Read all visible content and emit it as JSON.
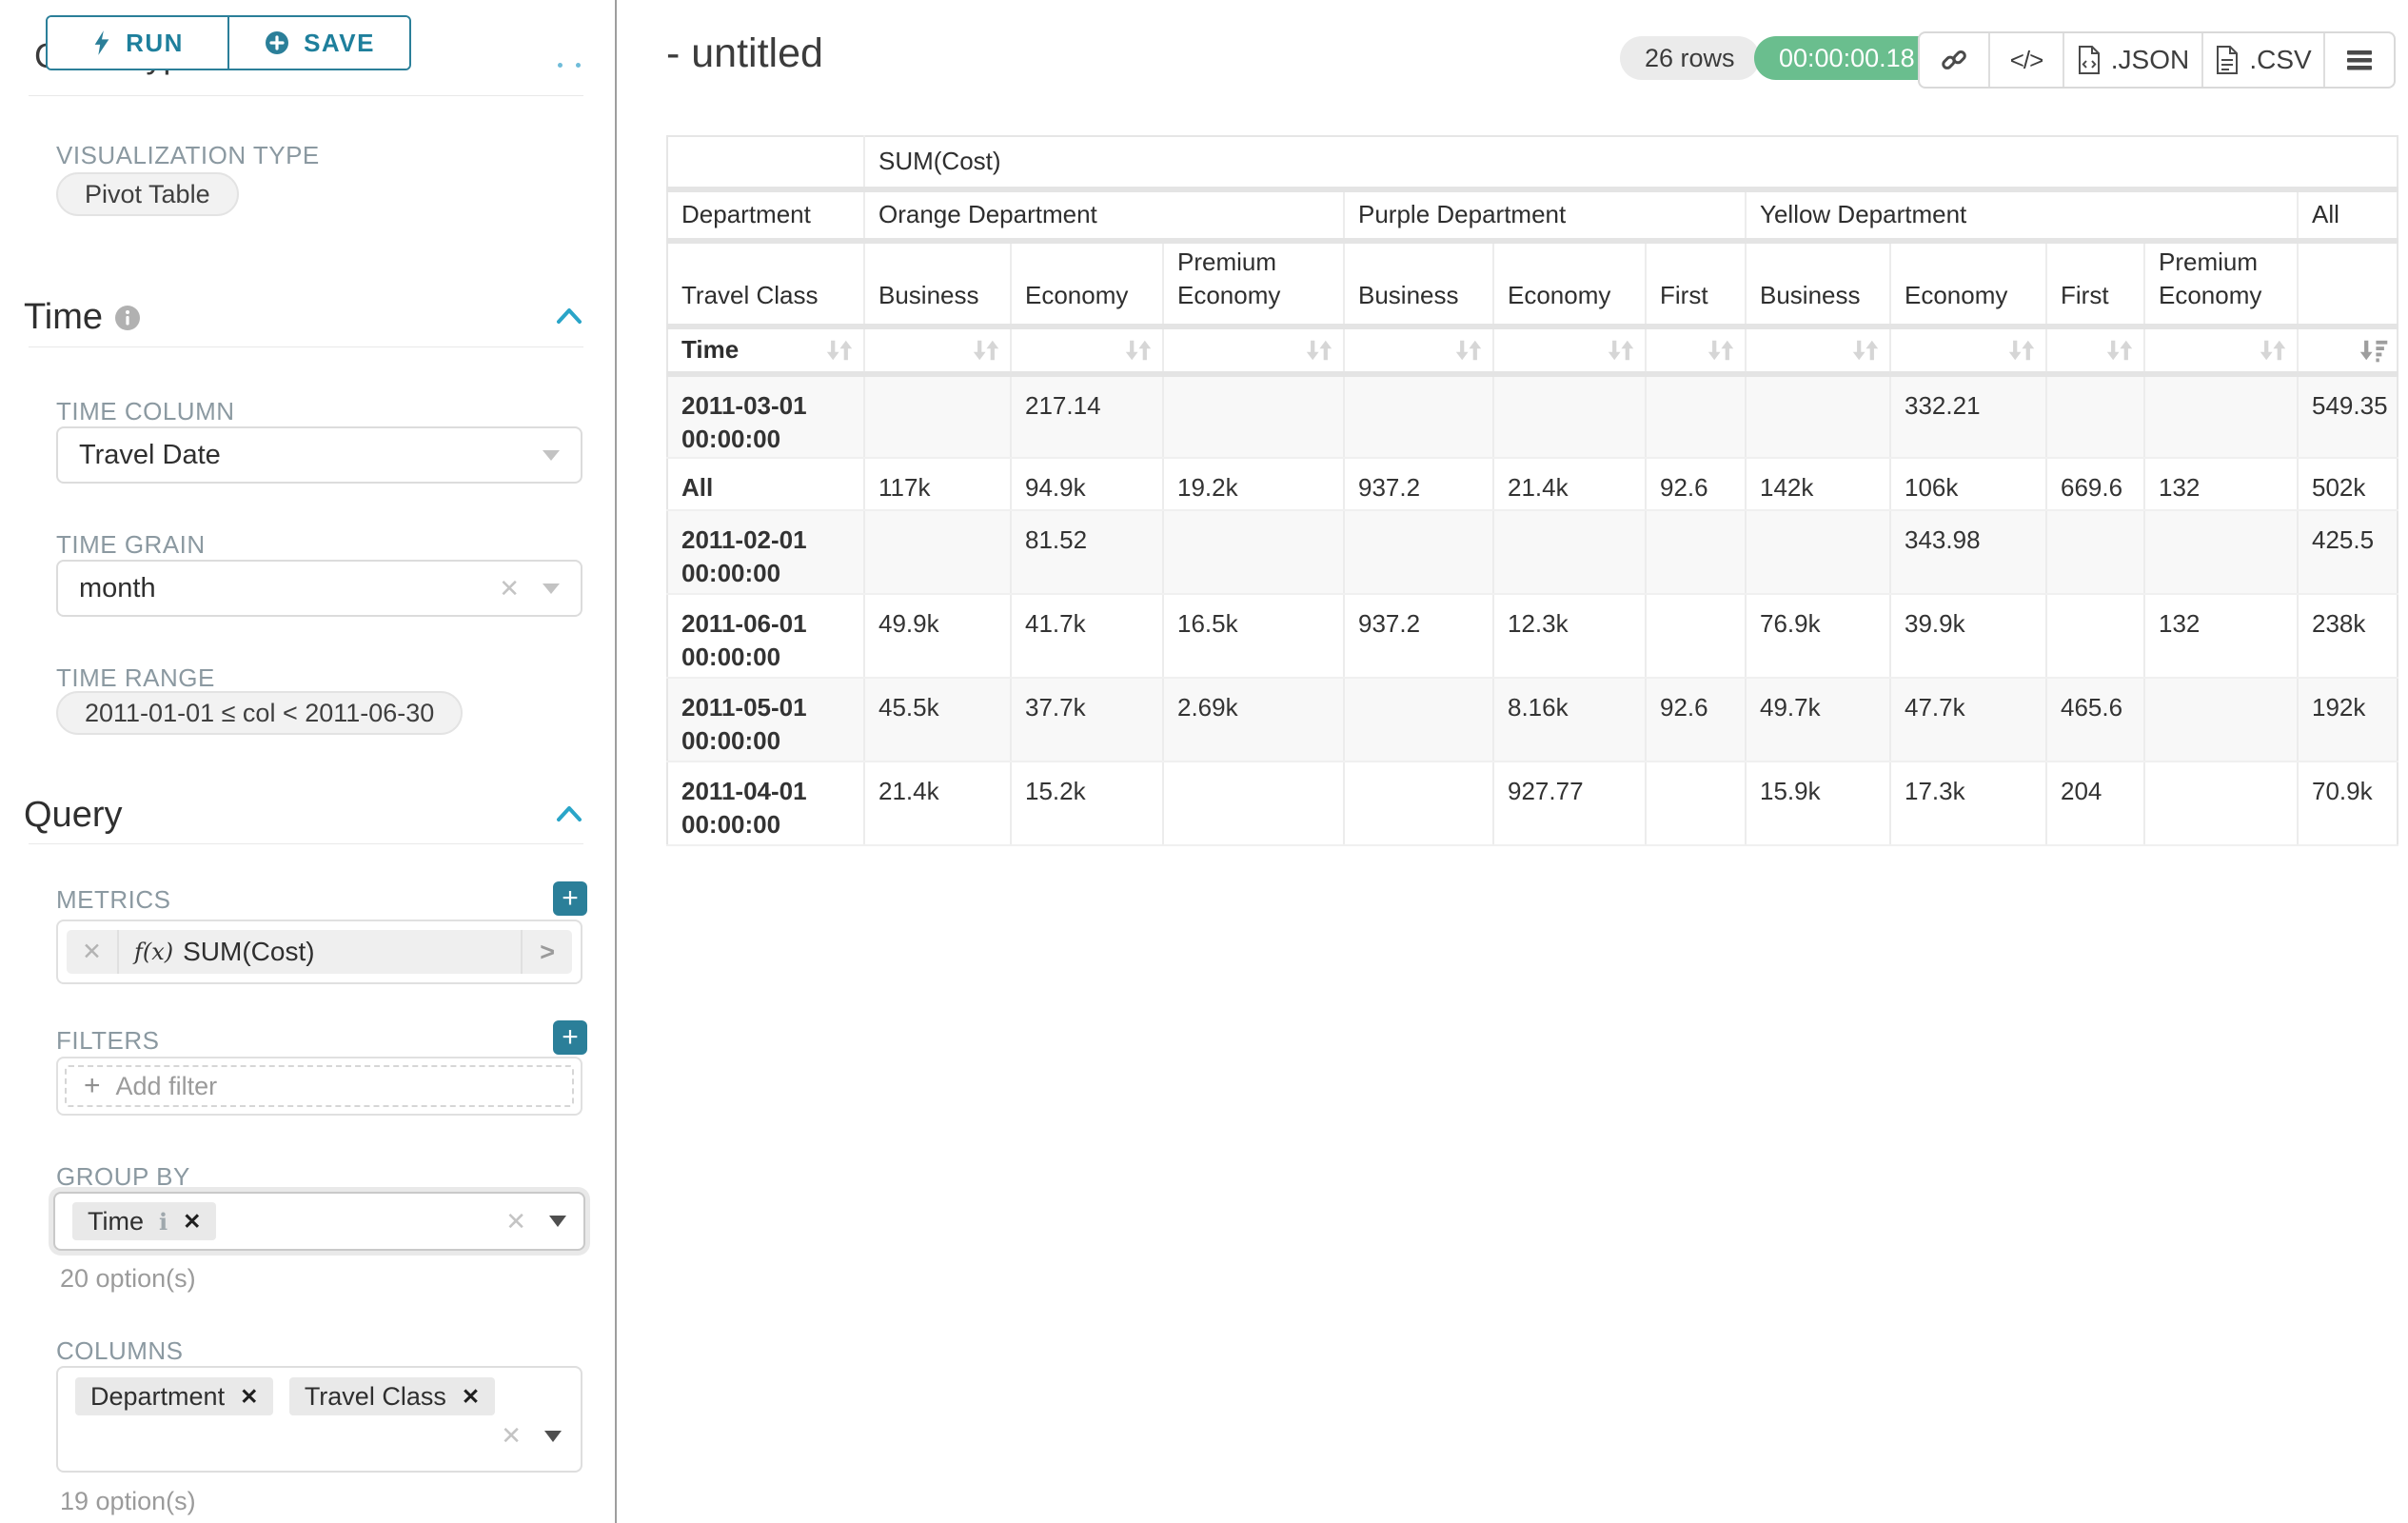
{
  "colors": {
    "accent_teal": "#2b7f99",
    "success_green": "#6abe8e",
    "link_blue": "#2aa5c8"
  },
  "panel": {
    "run_label": "RUN",
    "save_label": "SAVE",
    "chart_type_heading": "Chart Type",
    "viz_type_label": "VISUALIZATION TYPE",
    "viz_type_value": "Pivot Table",
    "time_section_title": "Time",
    "time_column_label": "TIME COLUMN",
    "time_column_value": "Travel Date",
    "time_grain_label": "TIME GRAIN",
    "time_grain_value": "month",
    "time_range_label": "TIME RANGE",
    "time_range_value": "2011-01-01 ≤ col < 2011-06-30",
    "query_section_title": "Query",
    "metrics_label": "METRICS",
    "metric_fx": "f(x)",
    "metric_value": "SUM(Cost)",
    "filters_label": "FILTERS",
    "add_filter_label": "Add filter",
    "group_by_label": "GROUP BY",
    "group_by_chips": [
      "Time"
    ],
    "group_by_options_count": "20 option(s)",
    "columns_label": "COLUMNS",
    "columns_chips": [
      "Department",
      "Travel Class"
    ],
    "columns_options_count": "19 option(s)"
  },
  "header": {
    "title": "- untitled",
    "row_count": "26 rows",
    "duration": "00:00:00.18",
    "json_label": ".JSON",
    "csv_label": ".CSV"
  },
  "pivot_table": {
    "metric_header": "SUM(Cost)",
    "corner": {
      "department": "Department",
      "travel_class": "Travel Class",
      "time": "Time"
    },
    "column_groups": [
      {
        "label": "Orange Department",
        "cols": [
          "Business",
          "Economy",
          "Premium Economy"
        ]
      },
      {
        "label": "Purple Department",
        "cols": [
          "Business",
          "Economy",
          "First"
        ]
      },
      {
        "label": "Yellow Department",
        "cols": [
          "Business",
          "Economy",
          "First",
          "Premium Economy"
        ]
      },
      {
        "label": "All",
        "cols": [
          ""
        ]
      }
    ],
    "rows": [
      {
        "label": "2011-03-01 00:00:00",
        "values": [
          "",
          "217.14",
          "",
          "",
          "",
          "",
          "",
          "332.21",
          "",
          "",
          "549.35"
        ]
      },
      {
        "label": "All",
        "values": [
          "117k",
          "94.9k",
          "19.2k",
          "937.2",
          "21.4k",
          "92.6",
          "142k",
          "106k",
          "669.6",
          "132",
          "502k"
        ]
      },
      {
        "label": "2011-02-01 00:00:00",
        "values": [
          "",
          "81.52",
          "",
          "",
          "",
          "",
          "",
          "343.98",
          "",
          "",
          "425.5"
        ]
      },
      {
        "label": "2011-06-01 00:00:00",
        "values": [
          "49.9k",
          "41.7k",
          "16.5k",
          "937.2",
          "12.3k",
          "",
          "76.9k",
          "39.9k",
          "",
          "132",
          "238k"
        ]
      },
      {
        "label": "2011-05-01 00:00:00",
        "values": [
          "45.5k",
          "37.7k",
          "2.69k",
          "",
          "8.16k",
          "92.6",
          "49.7k",
          "47.7k",
          "465.6",
          "",
          "192k"
        ]
      },
      {
        "label": "2011-04-01 00:00:00",
        "values": [
          "21.4k",
          "15.2k",
          "",
          "",
          "927.77",
          "",
          "15.9k",
          "17.3k",
          "204",
          "",
          "70.9k"
        ]
      }
    ],
    "sorted_column": "All",
    "sort_direction": "descending"
  }
}
